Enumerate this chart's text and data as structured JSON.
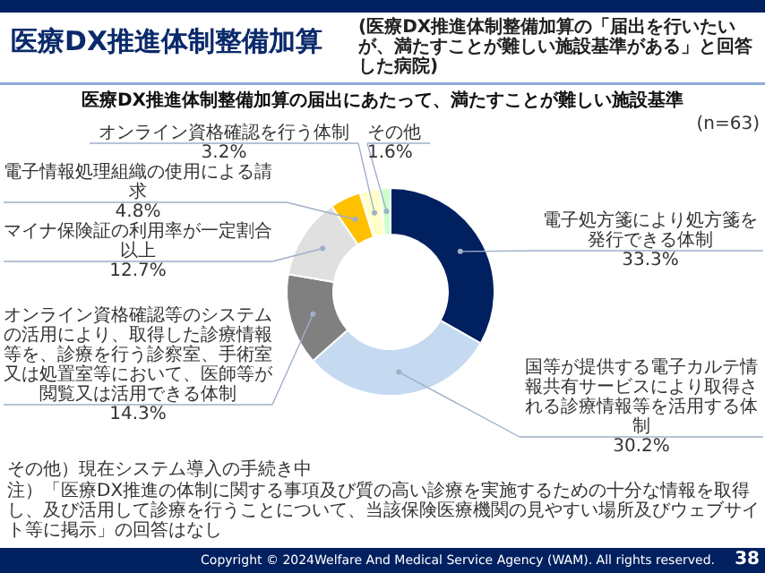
{
  "chart_data": {
    "type": "donut",
    "title": "医療DX推進体制整備加算",
    "subtitle": "医療DX推進体制整備加算の届出にあたって、満たすことが難しい施設基準",
    "categories": [
      "電子処方箋により処方箋を発行できる体制",
      "国等が提供する電子カルテ情報共有サービスにより取得される診療情報等を活用する体制",
      "オンライン資格確認等のシステムの活用により、取得した診療情報等を、診療を行う診察室、手術室又は処置室等において、医師等が閲覧又は活用できる体制",
      "マイナ保険証の利用率が一定割合以上",
      "電子情報処理組織の使用による請求",
      "オンライン資格確認を行う体制",
      "その他"
    ],
    "values": [
      33.3,
      30.2,
      14.3,
      12.7,
      4.8,
      3.2,
      1.6
    ],
    "colors": [
      "#002060",
      "#c5d9f1",
      "#808080",
      "#e0e0e0",
      "#ffc000",
      "#ffffcc",
      "#ccffcc"
    ],
    "value_labels": [
      "33.3%",
      "30.2%",
      "14.3%",
      "12.7%",
      "4.8%",
      "3.2%",
      "1.6%"
    ],
    "annotations": [
      "(医療DX推進体制整備加算の「届出を行いたいが、満たすことが難しい施設基準がある」と回答した病院)",
      "(n=63)",
      "その他）現在システム導入の手続き中",
      "注）「医療DX推進の体制に関する事項及び質の高い診療を実施するための十分な情報を取得し、及び活用して診療を行うことについて、当該保険医療機関の見やすい場所及びウェブサイト等に掲示」の回答はなし",
      "Copyright © 2024Welfare And Medical Service Agency (WAM). All rights reserved.",
      "38"
    ]
  }
}
